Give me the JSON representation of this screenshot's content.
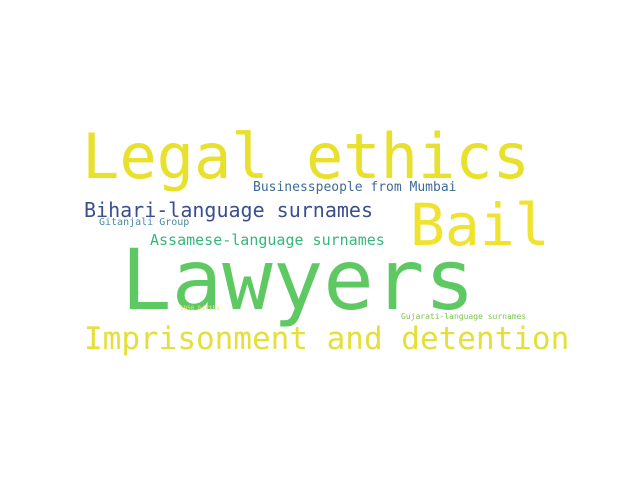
{
  "wordcloud": {
    "words": [
      {
        "id": "legal",
        "text": "Legal ethics",
        "color": "#e8e02a"
      },
      {
        "id": "lawyers",
        "text": "Lawyers",
        "color": "#5ec962"
      },
      {
        "id": "bail",
        "text": "Bail",
        "color": "#efe32e"
      },
      {
        "id": "imprison",
        "text": "Imprisonment and detention",
        "color": "#e4df3a"
      },
      {
        "id": "bihari",
        "text": "Bihari-language surnames",
        "color": "#3b4f8c"
      },
      {
        "id": "business",
        "text": "Businesspeople from Mumbai",
        "color": "#3f6b96"
      },
      {
        "id": "assamese",
        "text": "Assamese-language surnames",
        "color": "#35b779"
      },
      {
        "id": "gitanjali",
        "text": "Gitanjali Group",
        "color": "#4a8aa3"
      },
      {
        "id": "gujarati",
        "text": "Gujarati-language surnames",
        "color": "#80c34d"
      },
      {
        "id": "y1956",
        "text": "1956 births",
        "color": "#f2e46a"
      }
    ]
  }
}
